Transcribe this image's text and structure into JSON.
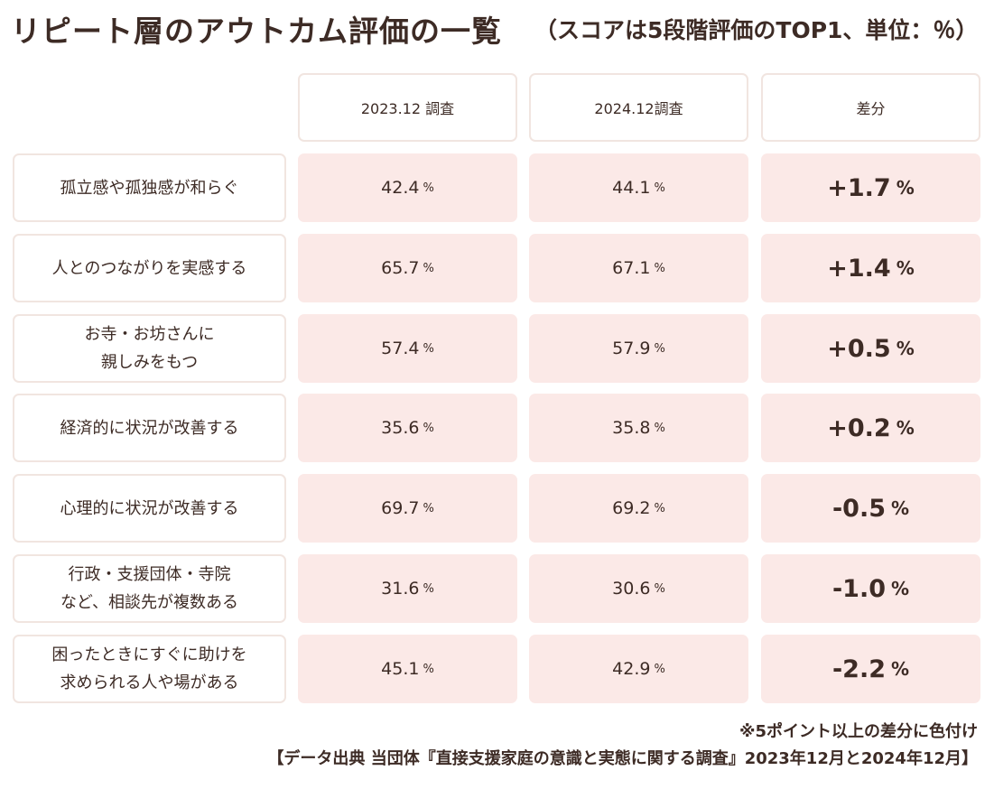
{
  "header": {
    "title": "リピート層のアウトカム評価の一覧",
    "subtitle": "（スコアは5段階評価のTOP1、単位：％）"
  },
  "chart_data": {
    "type": "table",
    "columns": [
      "2023.12 調査",
      "2024.12調査",
      "差分"
    ],
    "unit": "%",
    "rows": [
      {
        "label": [
          "孤立感や孤独感が和らぐ"
        ],
        "y2023": "42.4",
        "y2024": "44.1",
        "diff": "+1.7"
      },
      {
        "label": [
          "人とのつながりを実感する"
        ],
        "y2023": "65.7",
        "y2024": "67.1",
        "diff": "+1.4"
      },
      {
        "label": [
          "お寺・お坊さんに",
          "親しみをもつ"
        ],
        "y2023": "57.4",
        "y2024": "57.9",
        "diff": "+0.5"
      },
      {
        "label": [
          "経済的に状況が改善する"
        ],
        "y2023": "35.6",
        "y2024": "35.8",
        "diff": "+0.2"
      },
      {
        "label": [
          "心理的に状況が改善する"
        ],
        "y2023": "69.7",
        "y2024": "69.2",
        "diff": "-0.5"
      },
      {
        "label": [
          "行政・支援団体・寺院",
          "など、相談先が複数ある"
        ],
        "y2023": "31.6",
        "y2024": "30.6",
        "diff": "-1.0"
      },
      {
        "label": [
          "困ったときにすぐに助けを",
          "求められる人や場がある"
        ],
        "y2023": "45.1",
        "y2024": "42.9",
        "diff": "-2.2"
      }
    ]
  },
  "footer": {
    "note": "※5ポイント以上の差分に色付け",
    "source": "【データ出典 当団体『直接支援家庭の意識と実態に関する調査』2023年12月と2024年12月】"
  },
  "colors": {
    "text": "#3d2b25",
    "cell_fill": "#fbe9e7",
    "border": "#f1e5e0"
  }
}
